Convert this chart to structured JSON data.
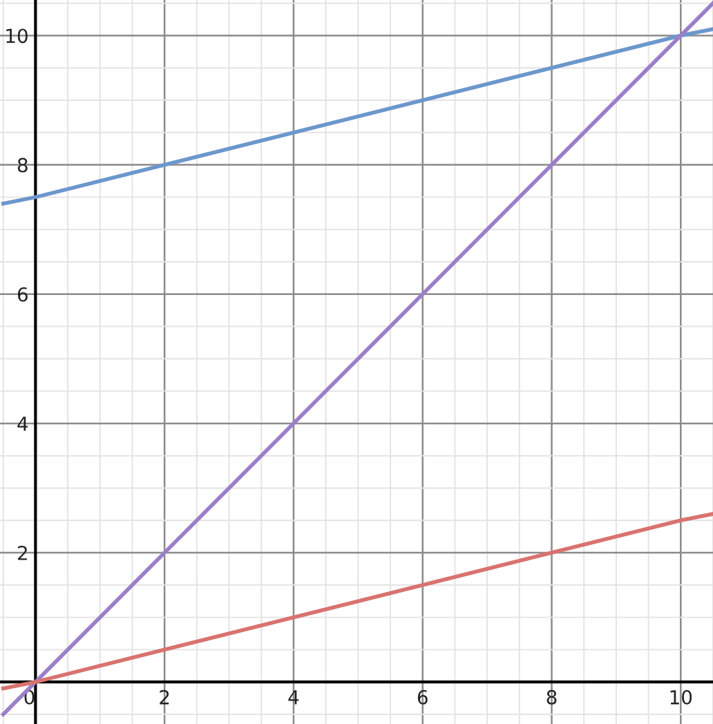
{
  "chart_data": {
    "type": "line",
    "series": [
      {
        "color": "#6c97cd",
        "x": [
          -0.5,
          0,
          10,
          10.5
        ],
        "values": [
          7.4,
          7.5,
          10,
          10.1
        ]
      },
      {
        "color": "#9a7fc9",
        "x": [
          -0.5,
          0,
          10,
          10.5
        ],
        "values": [
          -0.5,
          0,
          10,
          10.5
        ]
      },
      {
        "color": "#d8736e",
        "x": [
          -0.5,
          0,
          10,
          10.5
        ],
        "values": [
          -0.1,
          0,
          2.5,
          2.6
        ]
      }
    ],
    "xlim": [
      -0.55,
      10.5
    ],
    "ylim": [
      -0.65,
      10.55
    ],
    "xticks": [
      {
        "value": 0,
        "label": "0"
      },
      2,
      4,
      6,
      8,
      10
    ],
    "yticks": [
      {
        "value": 0,
        "label": null
      },
      2,
      4,
      6,
      8,
      10
    ],
    "grid": true,
    "marker": "none",
    "line_style": "solid",
    "legend": false
  }
}
